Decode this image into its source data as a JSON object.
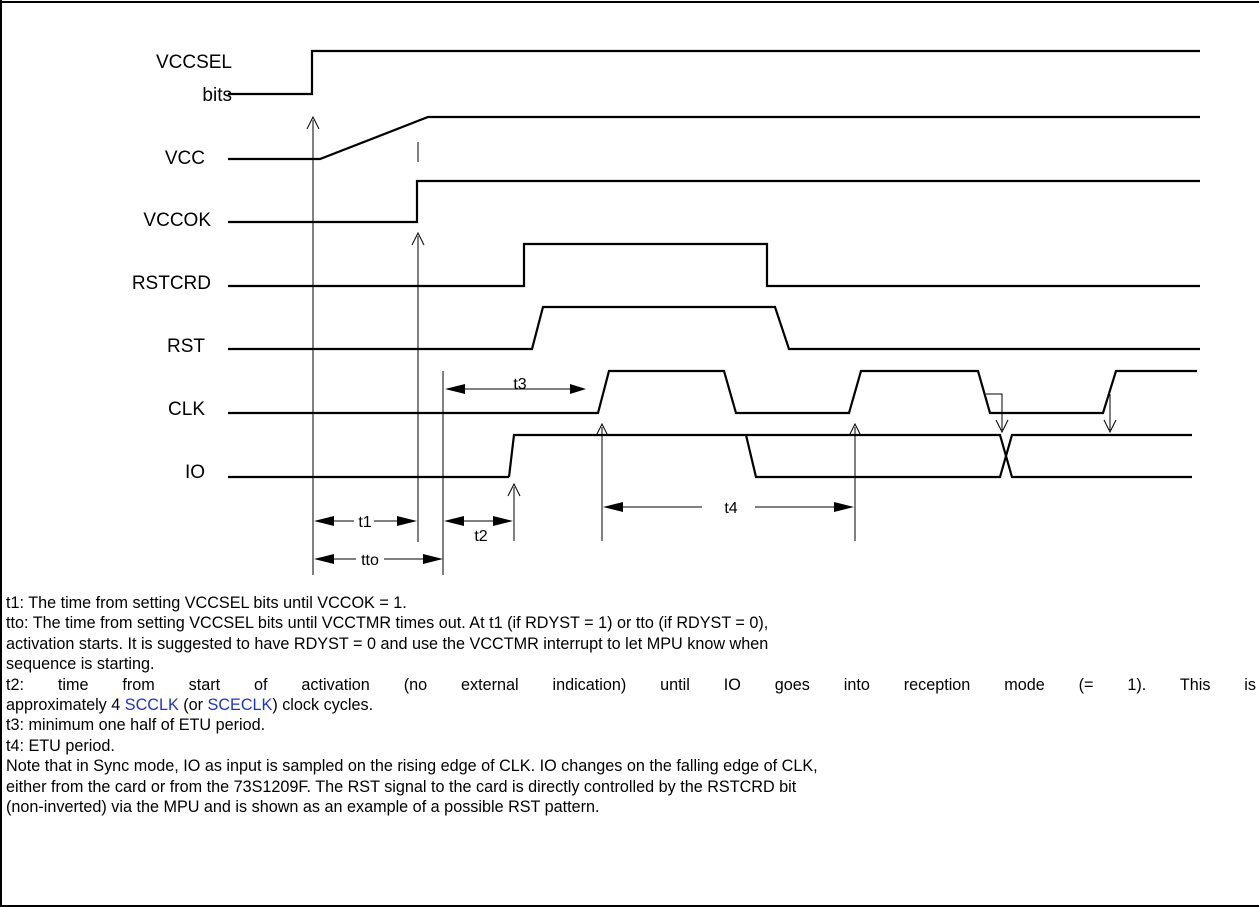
{
  "signals": {
    "vccsel": {
      "line1": "VCCSEL",
      "line2": "bits"
    },
    "vcc": "VCC",
    "vccok": "VCCOK",
    "rstcrd": "RSTCRD",
    "rst": "RST",
    "clk": "CLK",
    "io": "IO"
  },
  "timings": {
    "t1": "t1",
    "t2": "t2",
    "t3": "t3",
    "t4": "t4",
    "tto": "tto"
  },
  "notes": {
    "t1": "t1: The time from setting VCCSEL bits until VCCOK = 1.",
    "tto_line1": "tto: The time from setting VCCSEL bits until VCCTMR times out.  At t1 (if RDYST = 1) or tto (if RDYST = 0),",
    "tto_line2": "activation starts.  It is suggested to have RDYST = 0 and use the VCCTMR interrupt to let MPU know when",
    "tto_line3": "sequence is starting.",
    "t2_line1": "t2: time from start of activation (no external indication) until IO goes into reception mode (= 1).   This is",
    "t2_line2_a": "approximately 4 ",
    "t2_link1": "SCCLK",
    "t2_line2_b": " (or ",
    "t2_link2": "SCECLK",
    "t2_line2_c": ") clock cycles.",
    "t3": "t3: minimum one half of ETU period.",
    "t4": "t4: ETU period.",
    "sync_line1": "Note that in Sync mode, IO as input is sampled on the rising edge of CLK.  IO changes on the falling edge of CLK,",
    "sync_line2": "either from the card or from the 73S1209F.  The RST signal to the card is directly controlled by the RSTCRD bit",
    "sync_line3": "(non-inverted) via the MPU and is shown as an example of a possible RST pattern."
  }
}
